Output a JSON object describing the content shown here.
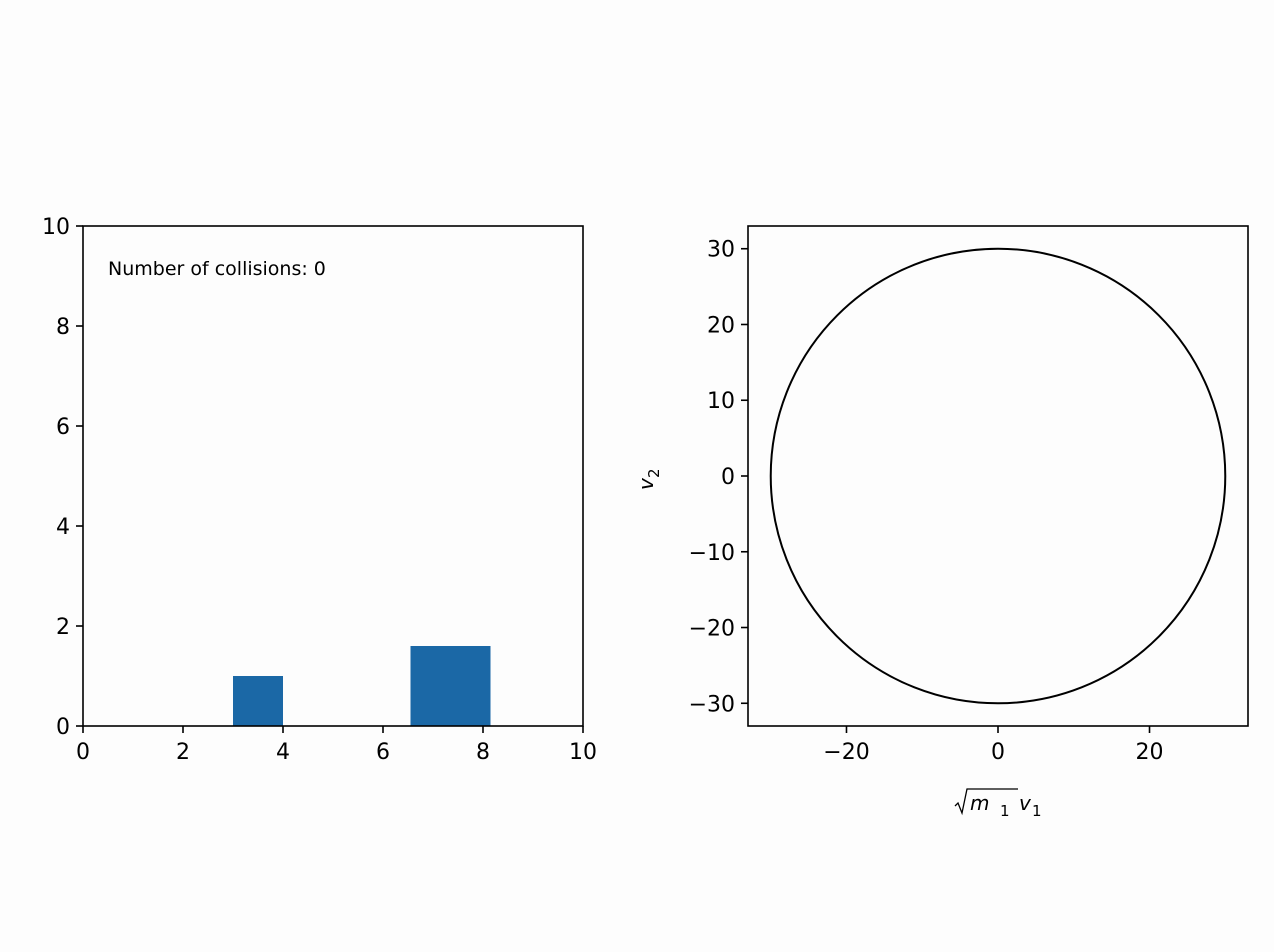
{
  "chart_data": [
    {
      "type": "bar",
      "annotation": "Number of collisions: 0",
      "xlim": [
        0,
        10
      ],
      "ylim": [
        0,
        10
      ],
      "xticks": [
        0,
        2,
        4,
        6,
        8,
        10
      ],
      "yticks": [
        0,
        2,
        4,
        6,
        8,
        10
      ],
      "blocks": [
        {
          "x": 3.0,
          "width": 1.0,
          "height": 1.0
        },
        {
          "x": 6.55,
          "width": 1.6,
          "height": 1.6
        }
      ],
      "color": "#1b68a6",
      "grid": false
    },
    {
      "type": "line",
      "xlabel_parts": {
        "root": "m",
        "root_sub": "1",
        "tail": "v",
        "tail_sub": "1"
      },
      "ylabel_parts": {
        "main": "v",
        "sub": "2"
      },
      "xlim": [
        -33,
        33
      ],
      "ylim": [
        -33,
        33
      ],
      "xticks": [
        -20,
        0,
        20
      ],
      "xtick_labels": [
        "−20",
        "0",
        "20"
      ],
      "yticks": [
        30,
        20,
        10,
        0,
        -10,
        -20,
        -30
      ],
      "ytick_labels": [
        "30",
        "20",
        "10",
        "0",
        "−10",
        "−20",
        "−30"
      ],
      "circle": {
        "cx": 0,
        "cy": 0,
        "r": 30
      },
      "color": "#000000",
      "grid": false
    }
  ]
}
